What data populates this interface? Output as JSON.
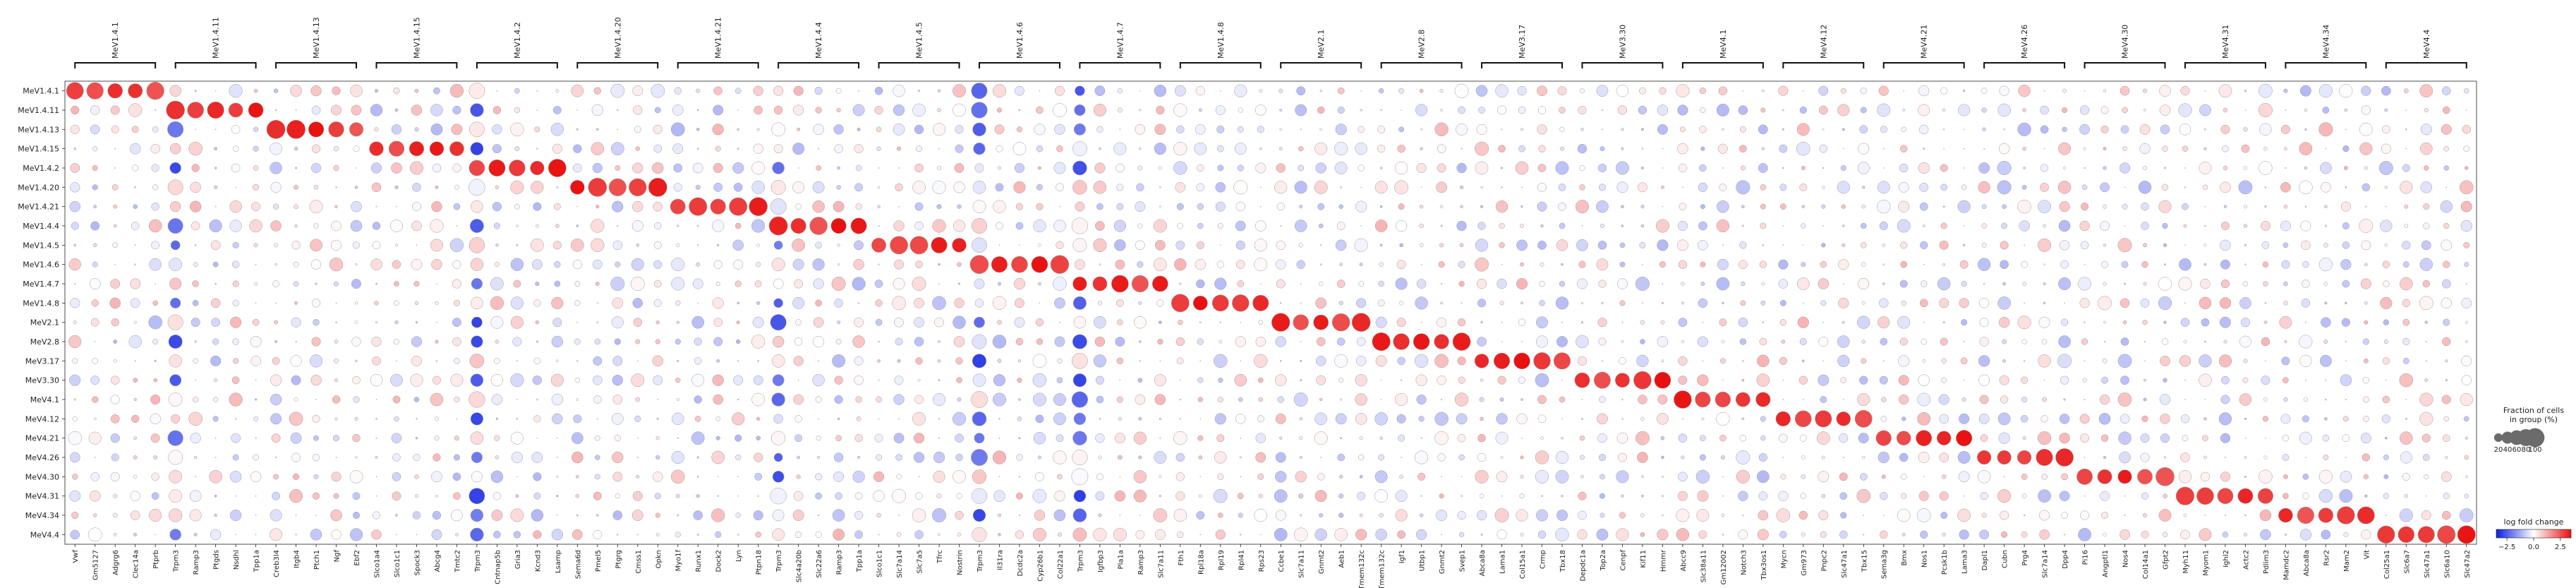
{
  "chart_data": {
    "type": "dotplot",
    "title": "",
    "xlabel": "",
    "ylabel": "",
    "groups": [
      "MeV1.4.1",
      "MeV1.4.11",
      "MeV1.4.13",
      "MeV1.4.15",
      "MeV1.4.2",
      "MeV1.4.20",
      "MeV1.4.21",
      "MeV1.4.4",
      "MeV1.4.5",
      "MeV1.4.6",
      "MeV1.4.7",
      "MeV1.4.8",
      "MeV2.1",
      "MeV2.8",
      "MeV3.17",
      "MeV3.30",
      "MeV4.1",
      "MeV4.12",
      "MeV4.21",
      "MeV4.26",
      "MeV4.30",
      "MeV4.31",
      "MeV4.34",
      "MeV4.4"
    ],
    "gene_blocks": [
      {
        "group": "MeV1.4.1",
        "genes": [
          "Vwf",
          "Gm5127",
          "Adgrg6",
          "Clec14a",
          "Ptprb"
        ]
      },
      {
        "group": "MeV1.4.11",
        "genes": [
          "Trpm3",
          "Ramp3",
          "Ptgds",
          "Nsdhl",
          "Tpp1a"
        ]
      },
      {
        "group": "MeV1.4.13",
        "genes": [
          "Creb3l4",
          "Itgb4",
          "Ptch1",
          "Ngf",
          "Ebf2"
        ]
      },
      {
        "group": "MeV1.4.15",
        "genes": [
          "Slco1a4",
          "Slco1c1",
          "Spock3",
          "Abcg4",
          "Tmtc2"
        ]
      },
      {
        "group": "MeV1.4.2",
        "genes": [
          "Trpm3",
          "Cntnap5b",
          "Gria3",
          "Kcnd3",
          "Lsamp"
        ]
      },
      {
        "group": "MeV1.4.20",
        "genes": [
          "Sema6d",
          "Pmel5",
          "Ptgrg",
          "Cmss1",
          "Opkn"
        ]
      },
      {
        "group": "MeV1.4.21",
        "genes": [
          "Myo1f",
          "Runx1",
          "Dock2",
          "Lyn",
          "Ptpn18"
        ]
      },
      {
        "group": "MeV1.4.4",
        "genes": [
          "Trpm3",
          "Slc4a20b",
          "Slc22a6",
          "Ramp3",
          "Tpp1a"
        ]
      },
      {
        "group": "MeV1.4.5",
        "genes": [
          "Slco1c1",
          "Slc7a14",
          "Slc7a5",
          "Tfrc",
          "Nostrin"
        ]
      },
      {
        "group": "MeV1.4.6",
        "genes": [
          "Trpm3",
          "Il31ra",
          "Dcdc2a",
          "Cyp26b1",
          "Col22a1"
        ]
      },
      {
        "group": "MeV1.4.7",
        "genes": [
          "Trpm3",
          "Igfbp3",
          "Pla1a",
          "Ramp3",
          "Slc7a11"
        ]
      },
      {
        "group": "MeV1.4.8",
        "genes": [
          "Fth1",
          "Rpl18a",
          "Rpl19",
          "Rpl41",
          "Rps23"
        ]
      },
      {
        "group": "MeV2.1",
        "genes": [
          "Ccbe1",
          "Slc7a11",
          "Gnmt2",
          "Aeb1",
          "Tmem132c"
        ]
      },
      {
        "group": "MeV2.8",
        "genes": [
          "Tmem132c",
          "Igf1",
          "Utbp1",
          "Gnmt2",
          "Svep1"
        ]
      },
      {
        "group": "MeV3.17",
        "genes": [
          "Abca8a",
          "Lama1",
          "Col15a1",
          "Crmp",
          "Tbx18"
        ]
      },
      {
        "group": "MeV3.30",
        "genes": [
          "Depdc1a",
          "Top2a",
          "Cenpf",
          "Kif11",
          "Hmmr"
        ]
      },
      {
        "group": "MeV4.1",
        "genes": [
          "Abcc9",
          "Slc38a11",
          "Gm12002",
          "Notch3",
          "Tbx3os1"
        ]
      },
      {
        "group": "MeV4.12",
        "genes": [
          "Mycn",
          "Gm973",
          "Pnpc2",
          "Slc47a1",
          "Tbx15"
        ]
      },
      {
        "group": "MeV4.21",
        "genes": [
          "Sema3g",
          "Bmx",
          "Nos1",
          "Pcsk1b",
          "Lama3"
        ]
      },
      {
        "group": "MeV4.26",
        "genes": [
          "Dapl1",
          "Cubn",
          "Prg4",
          "Slc7a14",
          "Dpp4"
        ]
      },
      {
        "group": "MeV4.30",
        "genes": [
          "Pi16",
          "Angptl1",
          "Nos4",
          "Col14a1",
          "Gfpt2"
        ]
      },
      {
        "group": "MeV4.31",
        "genes": [
          "Myh11",
          "Myom1",
          "Ighl2",
          "Actc2",
          "Pdlim3"
        ]
      },
      {
        "group": "MeV4.34",
        "genes": [
          "Mamdc2",
          "Abca8a",
          "Rsr2",
          "Mam2",
          "Vit"
        ]
      },
      {
        "group": "MeV4.4",
        "genes": [
          "Col25a1",
          "Slc6a7",
          "Slc47a1",
          "Slc6a10",
          "Slc47a2"
        ]
      }
    ],
    "legend_size": {
      "title_line1": "Fraction of cells",
      "title_line2": "in group (%)",
      "values": [
        20,
        40,
        60,
        80,
        100
      ],
      "labels": [
        "20",
        "40",
        "60",
        "80",
        "100"
      ]
    },
    "legend_color": {
      "title": "log fold change",
      "ticks": [
        -2.5,
        0.0,
        2.5
      ],
      "labels": [
        "−2.5",
        "0.0",
        "2.5"
      ],
      "range": [
        -3.5,
        3.5
      ],
      "colors": [
        "#0b1ee0",
        "#ffffff",
        "#e81010"
      ]
    }
  }
}
